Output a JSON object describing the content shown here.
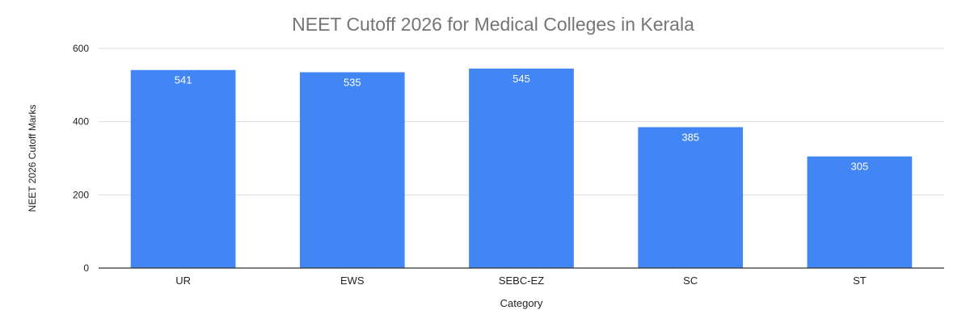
{
  "chart_data": {
    "type": "bar",
    "title": "NEET Cutoff 2026 for Medical Colleges in Kerala",
    "xlabel": "Category",
    "ylabel": "NEET 2026 Cutoff Marks",
    "categories": [
      "UR",
      "EWS",
      "SEBC-EZ",
      "SC",
      "ST"
    ],
    "values": [
      541,
      535,
      545,
      385,
      305
    ],
    "data_labels": [
      "541",
      "535",
      "545",
      "385",
      "305"
    ],
    "ylim": [
      0,
      600
    ],
    "yticks": [
      0,
      200,
      400,
      600
    ],
    "ytick_labels": [
      "0",
      "200",
      "400",
      "600"
    ],
    "grid": true,
    "legend": "none",
    "colors": {
      "bar": "#4285f4",
      "grid": "#d9d9d9",
      "axis": "#333333",
      "title": "#757575",
      "text": "#222222",
      "data_label": "#ffffff"
    }
  }
}
